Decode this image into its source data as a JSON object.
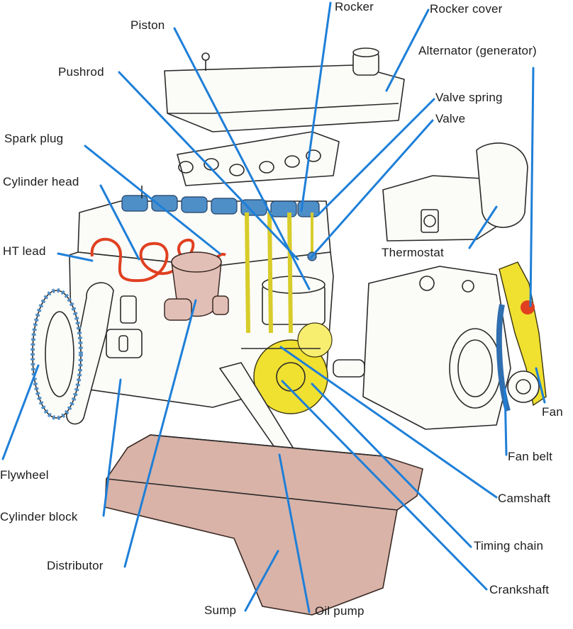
{
  "labels": {
    "rocker": "Rocker",
    "rocker_cover": "Rocker cover",
    "piston": "Piston",
    "alternator": "Alternator (generator)",
    "pushrod": "Pushrod",
    "valve_spring": "Valve spring",
    "valve": "Valve",
    "spark_plug": "Spark plug",
    "cylinder_head": "Cylinder head",
    "ht_lead": "HT lead",
    "thermostat": "Thermostat",
    "fan": "Fan",
    "fan_belt": "Fan belt",
    "flywheel": "Flywheel",
    "camshaft": "Camshaft",
    "cylinder_block": "Cylinder block",
    "timing_chain": "Timing chain",
    "distributor": "Distributor",
    "crankshaft": "Crankshaft",
    "sump": "Sump",
    "oil_pump": "Oil pump"
  },
  "colors": {
    "leader_line": "#1e7fd8",
    "sump": "#d9b3a8",
    "timing_gear": "#f0e030",
    "valve_gear": "#4f8fc8",
    "ht_lead": "#e04020"
  }
}
